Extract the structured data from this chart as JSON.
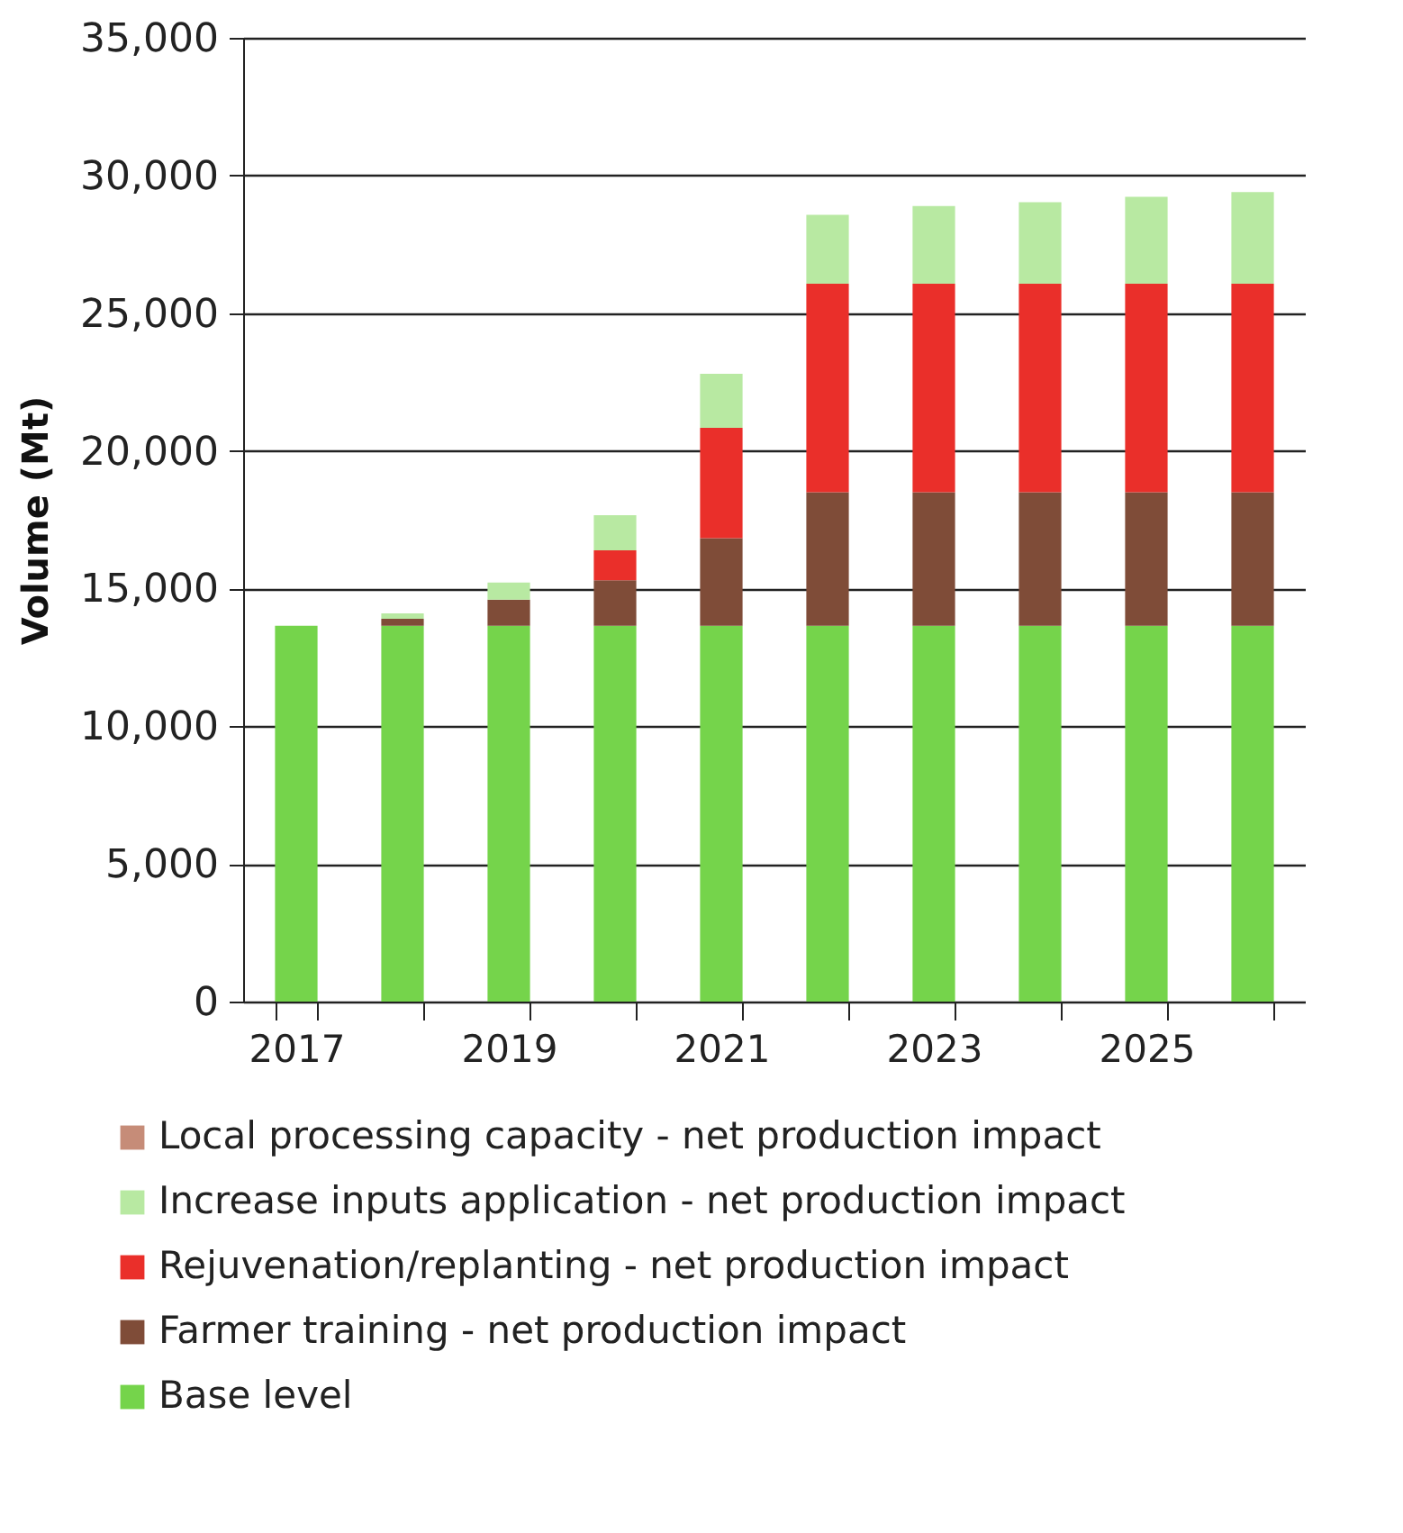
{
  "chart_data": {
    "type": "bar",
    "stacked": true,
    "ylabel": "Volume (Mt)",
    "categories": [
      "2017",
      null,
      "2019",
      null,
      "2021",
      null,
      "2023",
      null,
      "2025",
      null
    ],
    "series": [
      {
        "name": "Base level",
        "color": "#75d44b",
        "values": [
          13650,
          13650,
          13650,
          13650,
          13650,
          13650,
          13650,
          13650,
          13650,
          13650
        ]
      },
      {
        "name": "Farmer training - net production impact",
        "color": "#7f4c38",
        "values": [
          0,
          250,
          950,
          1650,
          3180,
          4850,
          4850,
          4850,
          4850,
          4850
        ]
      },
      {
        "name": "Rejuvenation/replanting - net production impact",
        "color": "#ea2f2a",
        "values": [
          0,
          0,
          0,
          1090,
          4010,
          7570,
          7570,
          7570,
          7570,
          7570
        ]
      },
      {
        "name": "Increase inputs application - net production impact",
        "color": "#b8e9a2",
        "values": [
          0,
          200,
          620,
          1270,
          1960,
          2500,
          2820,
          2960,
          3160,
          3330
        ]
      },
      {
        "name": "Local processing capacity - net production impact",
        "color": "#c68c78",
        "values": [
          0,
          0,
          0,
          0,
          0,
          0,
          0,
          0,
          0,
          0
        ]
      }
    ],
    "ylim": [
      0,
      35000
    ],
    "yticks": [
      0,
      {
        "value": 5000,
        "label": "5,000"
      },
      {
        "value": 10000,
        "label": "10,000"
      },
      {
        "value": 15000,
        "label": "15,000"
      },
      {
        "value": 20000,
        "label": "20,000"
      },
      {
        "value": 25000,
        "label": "25,000"
      },
      {
        "value": 30000,
        "label": "30,000"
      },
      {
        "value": 35000,
        "label": "35,000"
      }
    ],
    "grid": "y",
    "legend": "bottom"
  }
}
